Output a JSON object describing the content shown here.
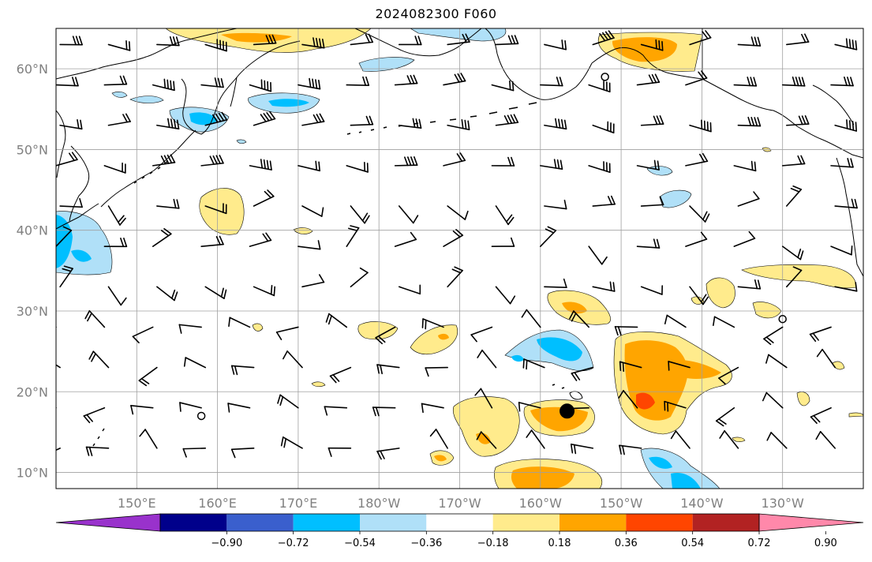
{
  "title": "2024082300 F060",
  "map": {
    "projection": "PlateCarree",
    "lon_range": [
      140,
      240
    ],
    "lat_range": [
      8,
      65
    ],
    "lat_ticks": [
      {
        "lat": 60,
        "label": "60°N"
      },
      {
        "lat": 50,
        "label": "50°N"
      },
      {
        "lat": 40,
        "label": "40°N"
      },
      {
        "lat": 30,
        "label": "30°N"
      },
      {
        "lat": 20,
        "label": "20°N"
      },
      {
        "lat": 10,
        "label": "10°N"
      }
    ],
    "lon_ticks": [
      {
        "lon": 150,
        "label": "150°E"
      },
      {
        "lon": 160,
        "label": "160°E"
      },
      {
        "lon": 170,
        "label": "170°E"
      },
      {
        "lon": 180,
        "label": "180°W"
      },
      {
        "lon": 190,
        "label": "170°W"
      },
      {
        "lon": 200,
        "label": "160°W"
      },
      {
        "lon": 210,
        "label": "150°W"
      },
      {
        "lon": 220,
        "label": "140°W"
      },
      {
        "lon": 230,
        "label": "130°W"
      }
    ],
    "gridlines": true,
    "colors": {
      "grid": "#a0a0a0",
      "coast": "#000000",
      "tick_label": "#808080"
    }
  },
  "colorbar": {
    "colors": [
      "#9932cc",
      "#00008b",
      "#3a5fcd",
      "#00bfff",
      "#b0e0f8",
      "#ffffff",
      "#ffeb8c",
      "#ffa500",
      "#ff4500",
      "#b22222",
      "#ff88aa"
    ],
    "labels": [
      "−0.90",
      "−0.72",
      "−0.54",
      "−0.36",
      "−0.18",
      "0.18",
      "0.36",
      "0.54",
      "0.72",
      "0.90"
    ]
  },
  "markers": [
    {
      "type": "filled-circle",
      "lon": 203.3,
      "lat": 17.6
    },
    {
      "type": "open-circle",
      "lon": 208,
      "lat": 59
    },
    {
      "type": "open-circle",
      "lon": 230,
      "lat": 29
    },
    {
      "type": "open-circle",
      "lon": 158,
      "lat": 17
    }
  ]
}
